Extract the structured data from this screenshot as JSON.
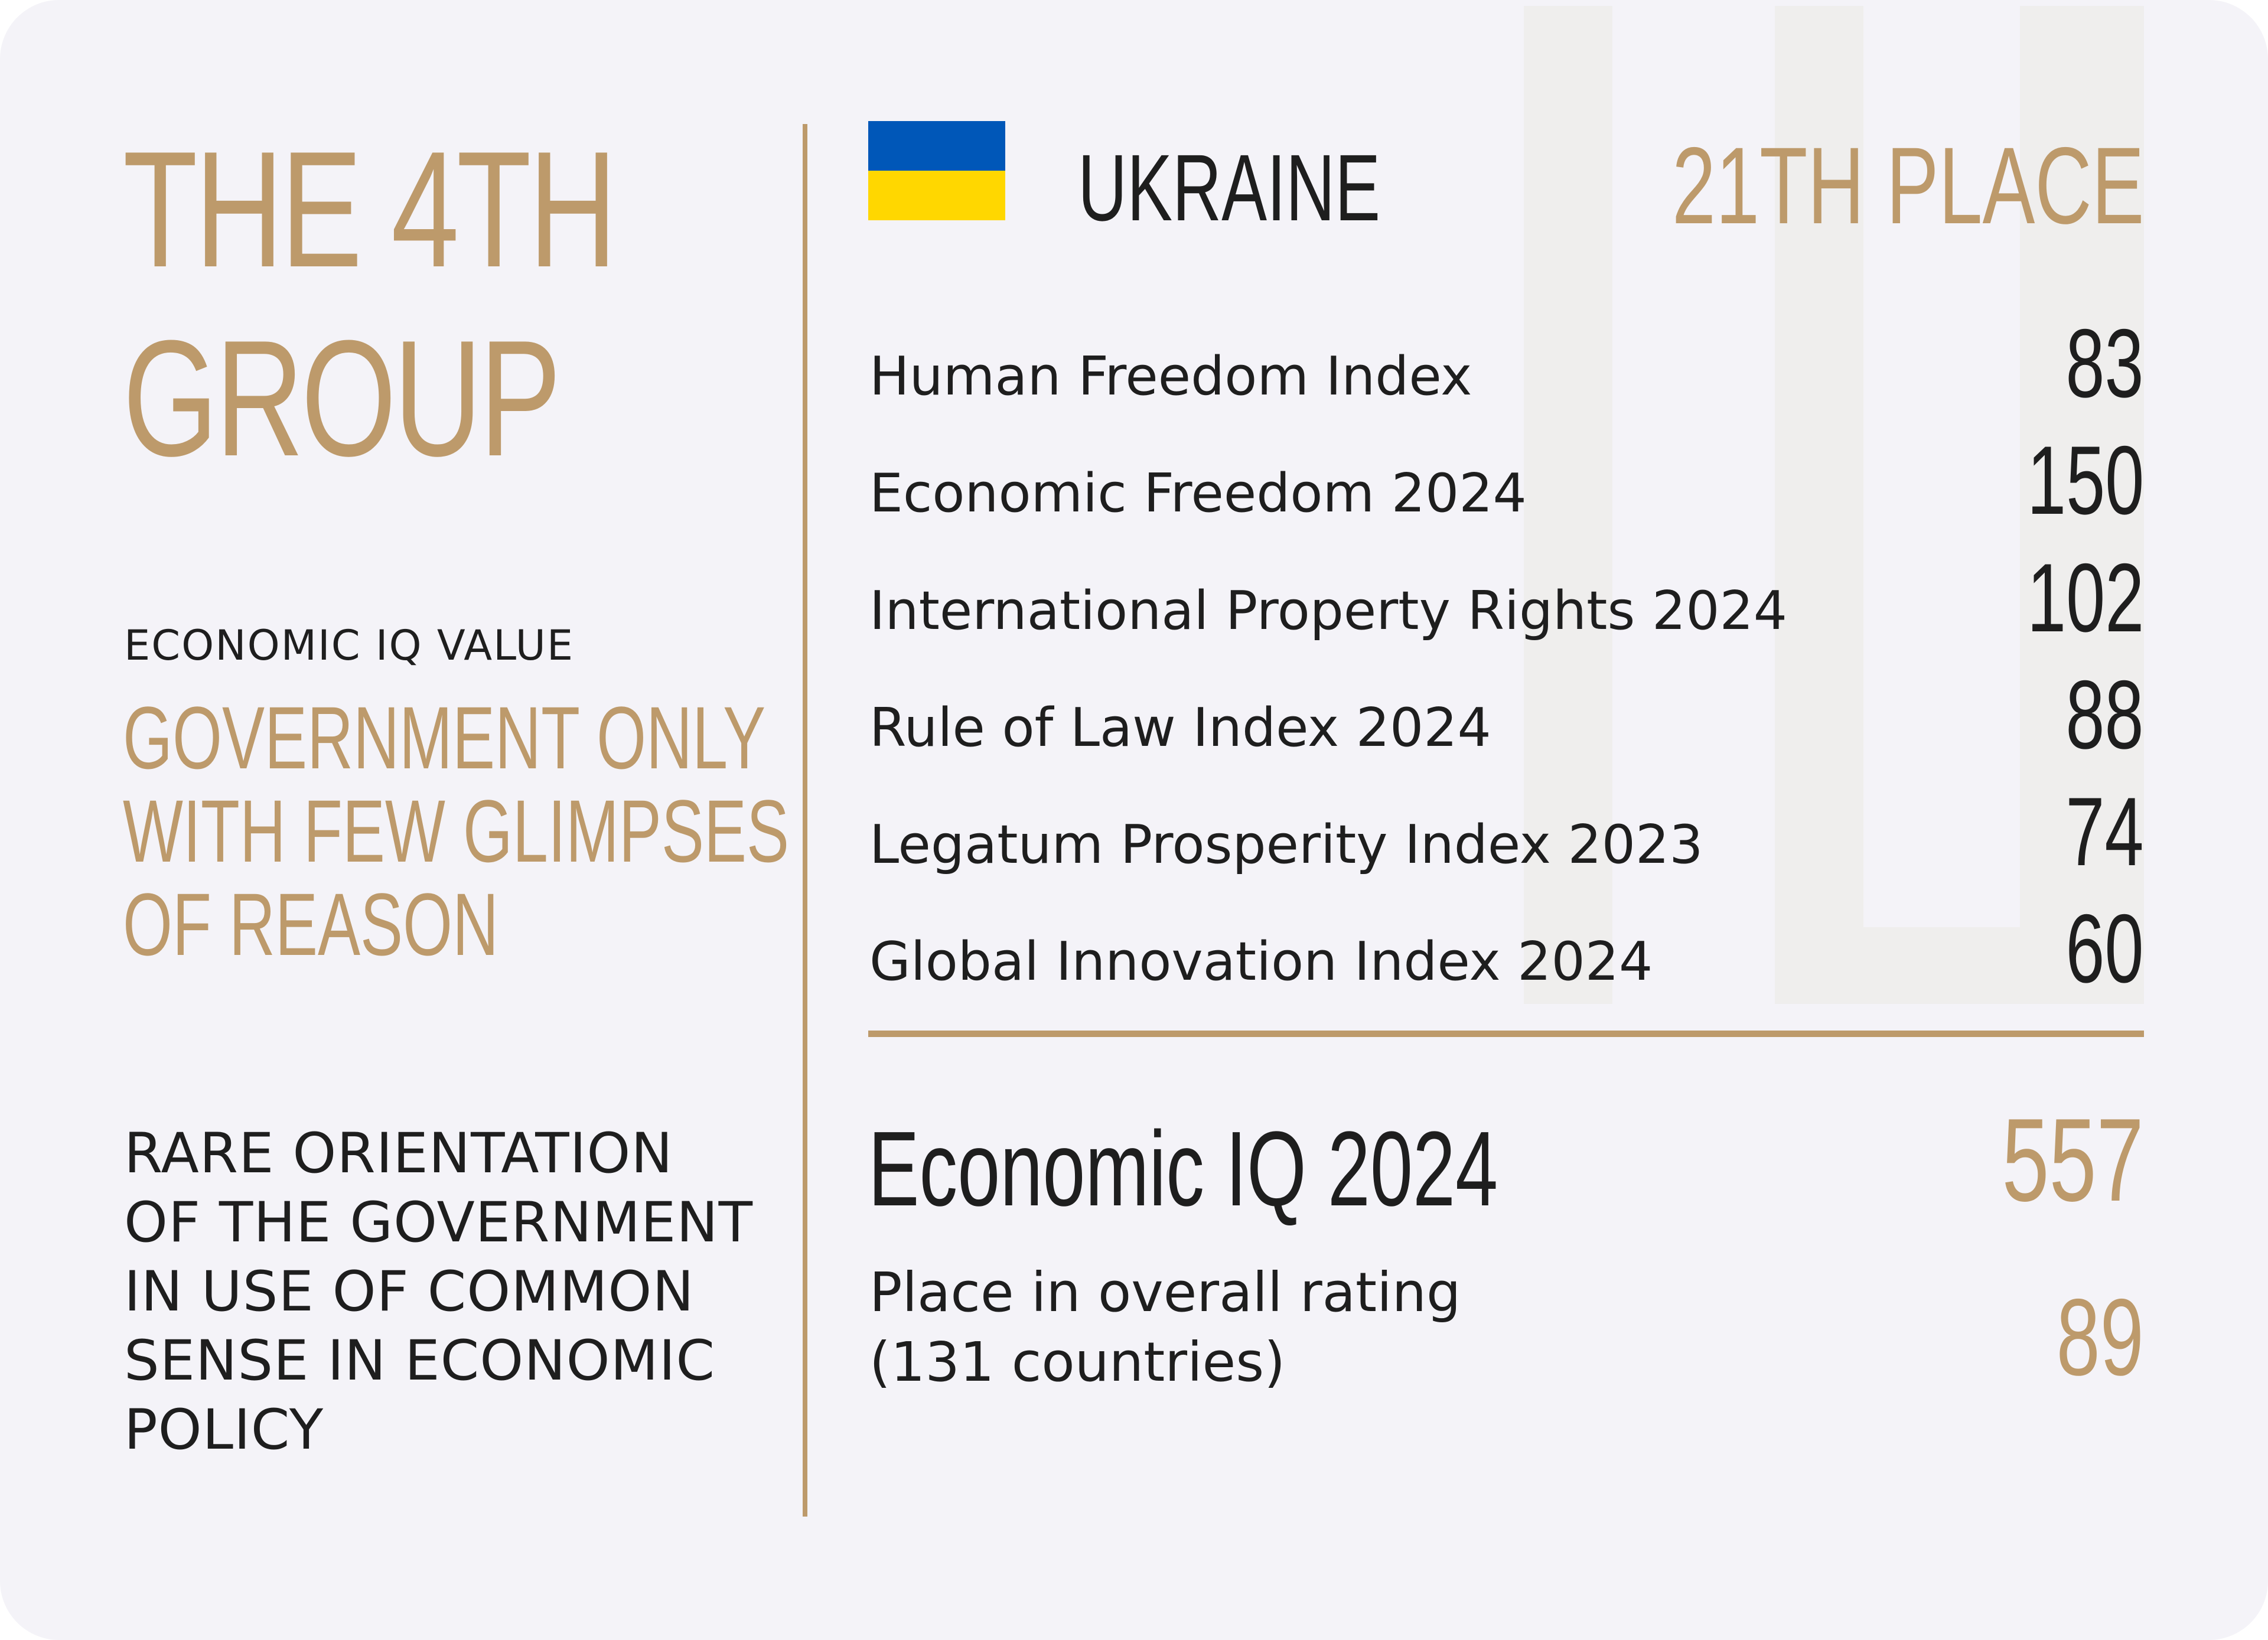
{
  "colors": {
    "accent": "#bd9a6b",
    "text": "#1e1e1e",
    "background": "#f4f3f8",
    "flag_blue": "#0057b8",
    "flag_yellow": "#ffd700"
  },
  "left": {
    "group_title_line1": "THE 4TH",
    "group_title_line2": "GROUP",
    "iq_value_label": "ECONOMIC IQ VALUE",
    "iq_value_lines": [
      "GOVERNMENT ONLY",
      "WITH FEW GLIMPSES",
      "OF REASON"
    ],
    "orientation_lines": [
      "RARE ORIENTATION",
      "OF THE GOVERNMENT",
      "IN USE OF COMMON",
      "SENSE IN ECONOMIC",
      "POLICY"
    ]
  },
  "country": {
    "flag_icon": "ukraine-flag-icon",
    "name": "UKRAINE",
    "place": "21TH PLACE"
  },
  "indices": [
    {
      "label": "Human Freedom Index",
      "value": "83"
    },
    {
      "label": "Economic Freedom 2024",
      "value": "150"
    },
    {
      "label": "International Property Rights 2024",
      "value": "102"
    },
    {
      "label": "Rule of Law Index 2024",
      "value": "88"
    },
    {
      "label": "Legatum Prosperity Index 2023",
      "value": "74"
    },
    {
      "label": "Global Innovation Index 2024",
      "value": "60"
    }
  ],
  "summary": {
    "economic_iq_label": "Economic IQ 2024",
    "economic_iq_value": "557",
    "place_label_line1": "Place in overall rating",
    "place_label_line2": "(131 countries)",
    "place_value": "89"
  }
}
